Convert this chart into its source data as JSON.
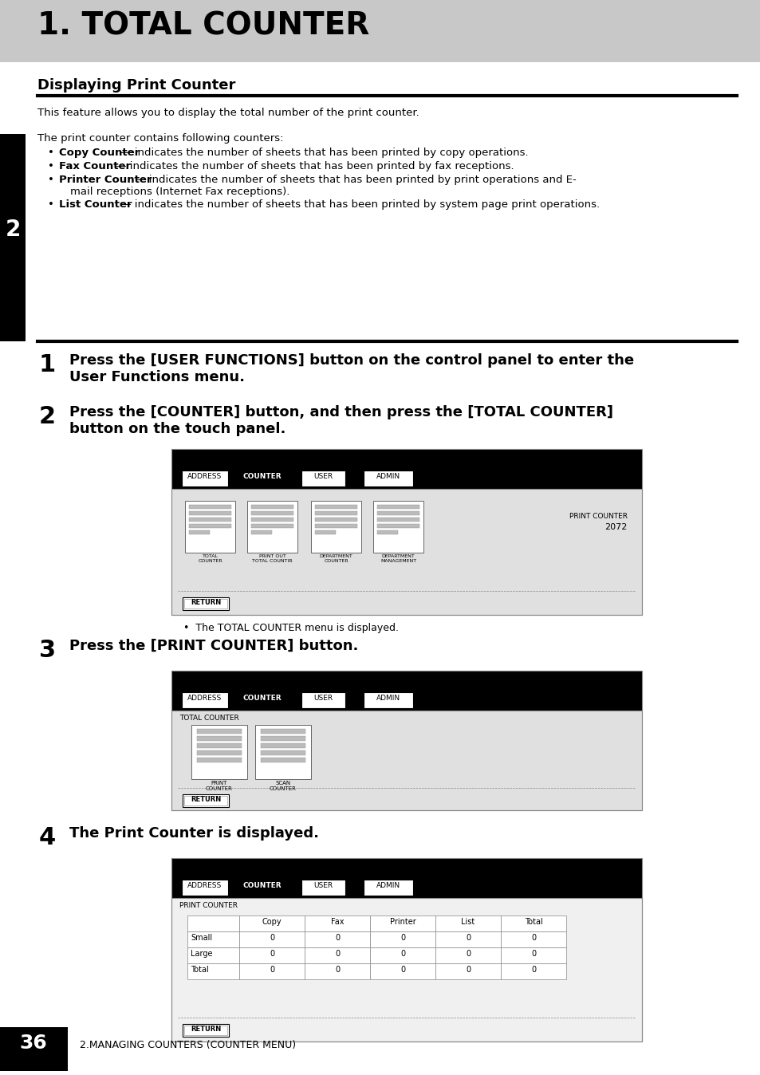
{
  "page_bg": "#ffffff",
  "header_bg": "#c8c8c8",
  "header_title": "1. TOTAL COUNTER",
  "section_title": "Displaying Print Counter",
  "intro_text": "This feature allows you to display the total number of the print counter.",
  "print_counter_intro": "The print counter contains following counters:",
  "step1_text": "Press the [USER FUNCTIONS] button on the control panel to enter the\nUser Functions menu.",
  "step2_text": "Press the [COUNTER] button, and then press the [TOTAL COUNTER]\nbutton on the touch panel.",
  "step3_text": "Press the [PRINT COUNTER] button.",
  "step4_text": "The Print Counter is displayed.",
  "note1": "The TOTAL COUNTER menu is displayed.",
  "left_tab_num": "2",
  "page_num": "36",
  "page_footer": "2.MANAGING COUNTERS (COUNTER MENU)",
  "tab_labels": [
    "ADDRESS",
    "COUNTER",
    "USER",
    "ADMIN"
  ],
  "screen1_icon_labels": [
    "TOTAL\nCOUNTER",
    "PRINT OUT\nTOTAL COUNTIR",
    "DEPARTMENT\nCOUNTER",
    "DEPARTMENT\nMANAGEMENT"
  ],
  "screen2_icon_labels": [
    "PRINT\nCOUNTER",
    "SCAN\nCOUNTER"
  ],
  "table_col_headers": [
    "",
    "Copy",
    "Fax",
    "Printer",
    "List",
    "Total"
  ],
  "table_rows": [
    [
      "Small",
      "0",
      "0",
      "0",
      "0",
      "0"
    ],
    [
      "Large",
      "0",
      "0",
      "0",
      "0",
      "0"
    ],
    [
      "Total",
      "0",
      "0",
      "0",
      "0",
      "0"
    ]
  ],
  "print_counter_value": "2072"
}
